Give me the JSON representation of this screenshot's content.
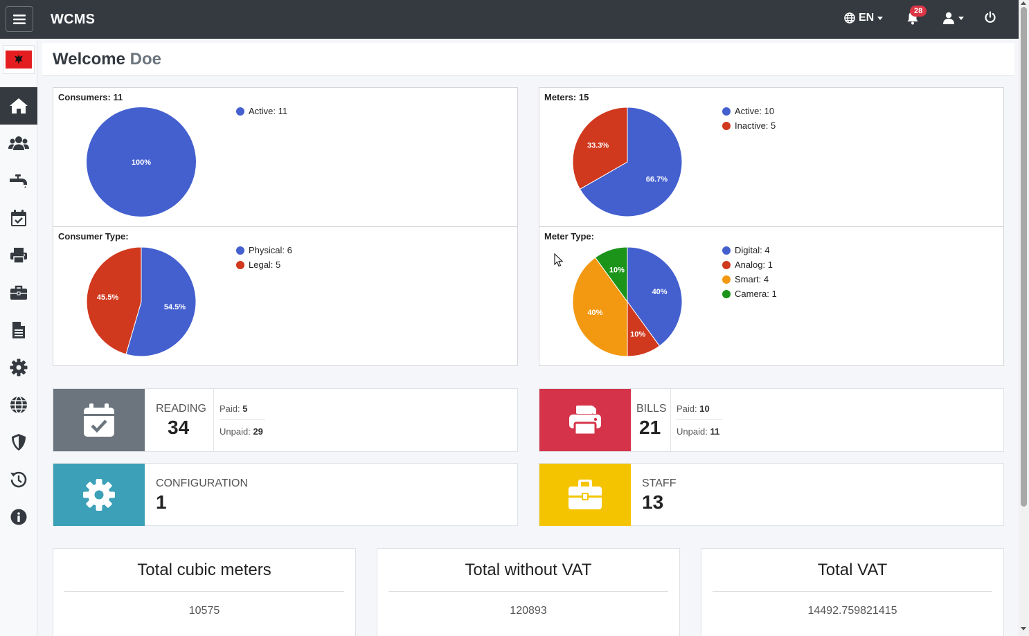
{
  "app": {
    "brand": "WCMS",
    "language": "EN",
    "notifications_count": "28"
  },
  "sidebar": {
    "items": [
      {
        "name": "home",
        "icon": "home-icon",
        "active": true
      },
      {
        "name": "consumers",
        "icon": "users-icon"
      },
      {
        "name": "meters",
        "icon": "faucet-icon"
      },
      {
        "name": "readings",
        "icon": "calendar-check-icon"
      },
      {
        "name": "bills",
        "icon": "printer-icon"
      },
      {
        "name": "staff",
        "icon": "briefcase-icon"
      },
      {
        "name": "documents",
        "icon": "file-icon"
      },
      {
        "name": "settings",
        "icon": "gear-icon"
      },
      {
        "name": "language",
        "icon": "globe-icon"
      },
      {
        "name": "security",
        "icon": "shield-icon"
      },
      {
        "name": "history",
        "icon": "history-icon"
      },
      {
        "name": "info",
        "icon": "info-icon"
      }
    ]
  },
  "header": {
    "welcome": "Welcome",
    "name": "Doe"
  },
  "colors": {
    "blue": "#4460cf",
    "red": "#d0391e",
    "orange": "#f39811",
    "green": "#1b9419",
    "reading": "#6c757d",
    "bills": "#d5334a",
    "config": "#3ba0b8",
    "staff": "#f5c400"
  },
  "chart_data": [
    {
      "type": "pie",
      "title": "Consumers: 11",
      "legend": [
        {
          "label": "Active: 11",
          "color": "#4460cf"
        }
      ],
      "slices": [
        {
          "value": 100,
          "label": "100%",
          "color": "#4460cf"
        }
      ]
    },
    {
      "type": "pie",
      "title": "Meters: 15",
      "legend": [
        {
          "label": "Active: 10",
          "color": "#4460cf"
        },
        {
          "label": "Inactive: 5",
          "color": "#d0391e"
        }
      ],
      "slices": [
        {
          "value": 66.7,
          "label": "66.7%",
          "color": "#4460cf"
        },
        {
          "value": 33.3,
          "label": "33.3%",
          "color": "#d0391e"
        }
      ]
    },
    {
      "type": "pie",
      "title": "Consumer Type:",
      "legend": [
        {
          "label": "Physical: 6",
          "color": "#4460cf"
        },
        {
          "label": "Legal: 5",
          "color": "#d0391e"
        }
      ],
      "slices": [
        {
          "value": 54.5,
          "label": "54.5%",
          "color": "#4460cf"
        },
        {
          "value": 45.5,
          "label": "45.5%",
          "color": "#d0391e"
        }
      ]
    },
    {
      "type": "pie",
      "title": "Meter Type:",
      "legend": [
        {
          "label": "Digital: 4",
          "color": "#4460cf"
        },
        {
          "label": "Analog: 1",
          "color": "#d0391e"
        },
        {
          "label": "Smart: 4",
          "color": "#f39811"
        },
        {
          "label": "Camera: 1",
          "color": "#1b9419"
        }
      ],
      "slices": [
        {
          "value": 40,
          "label": "40%",
          "color": "#4460cf"
        },
        {
          "value": 10,
          "label": "10%",
          "color": "#d0391e"
        },
        {
          "value": 40,
          "label": "40%",
          "color": "#f39811"
        },
        {
          "value": 10,
          "label": "10%",
          "color": "#1b9419"
        }
      ]
    }
  ],
  "boxes": {
    "reading": {
      "label": "READING",
      "value": "34",
      "paid_label": "Paid:",
      "paid": "5",
      "unpaid_label": "Unpaid:",
      "unpaid": "29"
    },
    "bills": {
      "label": "BILLS",
      "value": "21",
      "paid_label": "Paid:",
      "paid": "10",
      "unpaid_label": "Unpaid:",
      "unpaid": "11"
    },
    "configuration": {
      "label": "CONFIGURATION",
      "value": "1"
    },
    "staff": {
      "label": "STAFF",
      "value": "13"
    }
  },
  "totals": [
    {
      "title": "Total cubic meters",
      "value": "10575"
    },
    {
      "title": "Total without VAT",
      "value": "120893"
    },
    {
      "title": "Total VAT",
      "value": "14492.759821415"
    }
  ]
}
